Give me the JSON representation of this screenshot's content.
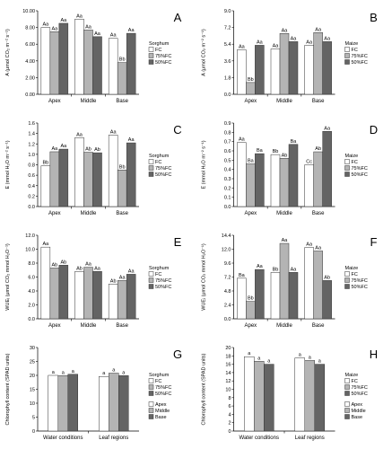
{
  "colors": {
    "FC": "#ffffff",
    "75%FC": "#b4b4b4",
    "50%FC": "#646464"
  },
  "chart_data": [
    {
      "type": "bar",
      "letter": "A",
      "categories": [
        "Apex",
        "Middle",
        "Base"
      ],
      "ylabel": "A (μmol CO₂ m⁻² s⁻¹)",
      "ylim": [
        0,
        10
      ],
      "yticks": [
        "0.00",
        "2.00",
        "4.00",
        "6.00",
        "8.00",
        "10.00"
      ],
      "legend_title": "Sorghum",
      "series": [
        {
          "name": "FC",
          "values": [
            8.0,
            9.0,
            6.7
          ],
          "labels": [
            "Aa",
            "Aa",
            "Aa"
          ]
        },
        {
          "name": "75%FC",
          "values": [
            7.5,
            7.7,
            3.8
          ],
          "labels": [
            "Aa",
            "Aa",
            "Bb"
          ]
        },
        {
          "name": "50%FC",
          "values": [
            8.5,
            6.9,
            7.3
          ],
          "labels": [
            "Aa",
            "Aa",
            "Aa"
          ]
        }
      ]
    },
    {
      "type": "bar",
      "letter": "B",
      "categories": [
        "Apex",
        "Middle",
        "Base"
      ],
      "ylabel": "A (μmol CO₂ m⁻² s⁻¹)",
      "ylim": [
        0,
        9.2
      ],
      "yticks": [
        "0.0",
        "1.8",
        "3.6",
        "5.4",
        "7.2",
        "9.0"
      ],
      "legend_title": "Maize",
      "series": [
        {
          "name": "FC",
          "values": [
            4.9,
            5.0,
            5.4
          ],
          "labels": [
            "Aa",
            "Aa",
            "Aa"
          ]
        },
        {
          "name": "75%FC",
          "values": [
            1.3,
            6.7,
            6.8
          ],
          "labels": [
            "Bb",
            "Aa",
            "Aa"
          ]
        },
        {
          "name": "50%FC",
          "values": [
            5.4,
            5.8,
            5.8
          ],
          "labels": [
            "Aa",
            "Aa",
            "Aa"
          ]
        }
      ]
    },
    {
      "type": "bar",
      "letter": "C",
      "categories": [
        "Apex",
        "Middle",
        "Base"
      ],
      "ylabel": "E (mmol H₂O m⁻² s⁻¹)",
      "ylim": [
        0,
        1.6
      ],
      "yticks": [
        "0.0",
        "0.2",
        "0.4",
        "0.6",
        "0.8",
        "1.0",
        "1.2",
        "1.4",
        "1.6"
      ],
      "legend_title": "Sorghum",
      "series": [
        {
          "name": "FC",
          "values": [
            0.78,
            1.32,
            1.37
          ],
          "labels": [
            "Bb",
            "Aa",
            "Aa"
          ]
        },
        {
          "name": "75%FC",
          "values": [
            1.05,
            1.04,
            0.7
          ],
          "labels": [
            "Aa",
            "Ab",
            "Bb"
          ]
        },
        {
          "name": "50%FC",
          "values": [
            1.1,
            1.03,
            1.22
          ],
          "labels": [
            "Aa",
            "Ab",
            "Aa"
          ]
        }
      ]
    },
    {
      "type": "bar",
      "letter": "D",
      "categories": [
        "Apex",
        "Middle",
        "Base"
      ],
      "ylabel": "E (mmol H₂O m⁻² s⁻¹)",
      "ylim": [
        0,
        0.9
      ],
      "yticks": [
        "0.0",
        "0.1",
        "0.2",
        "0.3",
        "0.4",
        "0.5",
        "0.6",
        "0.7",
        "0.8",
        "0.9"
      ],
      "legend_title": "Maize",
      "series": [
        {
          "name": "FC",
          "values": [
            0.69,
            0.56,
            0.45
          ],
          "labels": [
            "Aa",
            "Bb",
            "Cc"
          ]
        },
        {
          "name": "75%FC",
          "values": [
            0.46,
            0.52,
            0.59
          ],
          "labels": [
            "Ba",
            "Ab",
            "Ab"
          ]
        },
        {
          "name": "50%FC",
          "values": [
            0.57,
            0.67,
            0.81
          ],
          "labels": [
            "Ba",
            "Ba",
            "Aa"
          ]
        }
      ]
    },
    {
      "type": "bar",
      "letter": "E",
      "categories": [
        "Apex",
        "Middle",
        "Base"
      ],
      "ylabel": "WUEᵢ (μmol CO₂ mmol H₂O⁻¹)",
      "ylim": [
        0,
        12
      ],
      "yticks": [
        "0.0",
        "2.0",
        "4.0",
        "6.0",
        "8.0",
        "10.0",
        "12.0"
      ],
      "legend_title": "Sorghum",
      "series": [
        {
          "name": "FC",
          "values": [
            10.3,
            6.8,
            5.0
          ],
          "labels": [
            "Aa",
            "Ab",
            "Ab"
          ]
        },
        {
          "name": "75%FC",
          "values": [
            7.3,
            7.4,
            5.5
          ],
          "labels": [
            "Ab",
            "Aa",
            "Aa"
          ]
        },
        {
          "name": "50%FC",
          "values": [
            7.7,
            6.8,
            6.4
          ],
          "labels": [
            "Ab",
            "Aa",
            "Aa"
          ]
        }
      ]
    },
    {
      "type": "bar",
      "letter": "F",
      "categories": [
        "Apex",
        "Middle",
        "Base"
      ],
      "ylabel": "WUEᵢ (μmol CO₂ mmol H₂O⁻¹)",
      "ylim": [
        0,
        14.4
      ],
      "yticks": [
        "0.0",
        "2.4",
        "4.8",
        "7.2",
        "9.6",
        "12.0",
        "14.4"
      ],
      "legend_title": "Maize",
      "series": [
        {
          "name": "FC",
          "values": [
            7.0,
            8.0,
            12.3
          ],
          "labels": [
            "Ba",
            "Bb",
            "Aa"
          ]
        },
        {
          "name": "75%FC",
          "values": [
            3.0,
            13.0,
            11.7
          ],
          "labels": [
            "Bb",
            "Aa",
            "Aa"
          ]
        },
        {
          "name": "50%FC",
          "values": [
            8.5,
            8.0,
            6.6
          ],
          "labels": [
            "Aa",
            "Aa",
            "Ab"
          ]
        }
      ]
    },
    {
      "type": "bar",
      "letter": "G",
      "categories": [
        "Water conditions",
        "Leaf regions"
      ],
      "ylabel": "Chlorophyll content (SPAD units)",
      "ylim": [
        0,
        30
      ],
      "yticks": [
        "0",
        "5",
        "10",
        "15",
        "20",
        "25",
        "30"
      ],
      "legend_title": "Sorghum",
      "legend_groups": [
        [
          "FC",
          "75%FC",
          "50%FC"
        ],
        [
          "Apex",
          "Middle",
          "Base"
        ]
      ],
      "series": [
        {
          "name": "FC / Apex",
          "values": [
            20.0,
            19.6
          ],
          "labels": [
            "a",
            "a"
          ]
        },
        {
          "name": "75%FC / Middle",
          "values": [
            19.9,
            20.8
          ],
          "labels": [
            "a",
            "a"
          ]
        },
        {
          "name": "50%FC / Base",
          "values": [
            20.4,
            19.9
          ],
          "labels": [
            "a",
            "a"
          ]
        }
      ]
    },
    {
      "type": "bar",
      "letter": "H",
      "categories": [
        "Water conditions",
        "Leaf regions"
      ],
      "ylabel": "Chlorophyll content (SPAD units)",
      "ylim": [
        0,
        20
      ],
      "yticks": [
        "0",
        "2",
        "4",
        "6",
        "8",
        "10",
        "12",
        "14",
        "16",
        "18",
        "20"
      ],
      "legend_title": "Maize",
      "legend_groups": [
        [
          "FC",
          "75%FC",
          "50%FC"
        ],
        [
          "Apex",
          "Middle",
          "Base"
        ]
      ],
      "series": [
        {
          "name": "FC / Apex",
          "values": [
            17.8,
            17.5
          ],
          "labels": [
            "a",
            "a"
          ]
        },
        {
          "name": "75%FC / Middle",
          "values": [
            16.7,
            16.9
          ],
          "labels": [
            "a",
            "a"
          ]
        },
        {
          "name": "50%FC / Base",
          "values": [
            16.0,
            16.0
          ],
          "labels": [
            "a",
            "a"
          ]
        }
      ]
    }
  ]
}
